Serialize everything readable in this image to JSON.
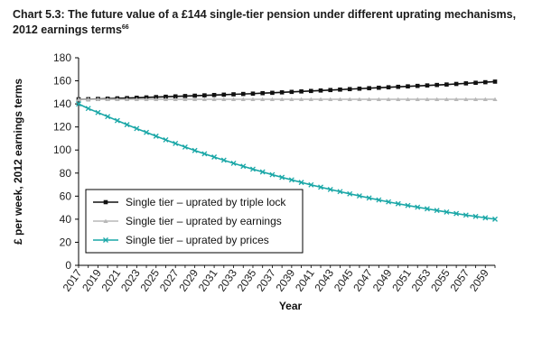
{
  "title": {
    "text": "Chart 5.3: The future value of a £144 single-tier pension under different uprating mechanisms, 2012 earnings terms",
    "footnote": "66"
  },
  "chart_data": {
    "type": "line",
    "xlabel": "Year",
    "ylabel": "£ per week, 2012 earnings terms",
    "xlim": [
      2017,
      2060
    ],
    "ylim": [
      0,
      180
    ],
    "yticks": [
      0,
      20,
      40,
      60,
      80,
      100,
      120,
      140,
      160,
      180
    ],
    "xticks": [
      2017,
      2019,
      2021,
      2023,
      2025,
      2027,
      2029,
      2031,
      2033,
      2035,
      2037,
      2039,
      2041,
      2043,
      2045,
      2047,
      2049,
      2051,
      2053,
      2055,
      2057,
      2059
    ],
    "grid": false,
    "legend_position": "lower-left",
    "x": [
      2017,
      2018,
      2019,
      2020,
      2021,
      2022,
      2023,
      2024,
      2025,
      2026,
      2027,
      2028,
      2029,
      2030,
      2031,
      2032,
      2033,
      2034,
      2035,
      2036,
      2037,
      2038,
      2039,
      2040,
      2041,
      2042,
      2043,
      2044,
      2045,
      2046,
      2047,
      2048,
      2049,
      2050,
      2051,
      2052,
      2053,
      2054,
      2055,
      2056,
      2057,
      2058,
      2059,
      2060
    ],
    "series": [
      {
        "name": "Single tier – uprated by triple lock",
        "color": "#111111",
        "marker": "square",
        "values": [
          144.0,
          144.1,
          144.3,
          144.5,
          144.8,
          145.0,
          145.3,
          145.6,
          145.9,
          146.2,
          146.5,
          146.8,
          147.1,
          147.4,
          147.7,
          148.0,
          148.3,
          148.6,
          148.9,
          149.3,
          149.6,
          150.0,
          150.4,
          150.8,
          151.2,
          151.6,
          152.0,
          152.4,
          152.8,
          153.2,
          153.6,
          154.0,
          154.4,
          154.8,
          155.2,
          155.6,
          156.0,
          156.4,
          156.8,
          157.3,
          157.8,
          158.3,
          158.8,
          159.3
        ]
      },
      {
        "name": "Single tier – uprated by earnings",
        "color": "#b8b8b8",
        "marker": "triangle",
        "values": [
          144,
          144,
          144,
          144,
          144,
          144,
          144,
          144,
          144,
          144,
          144,
          144,
          144,
          144,
          144,
          144,
          144,
          144,
          144,
          144,
          144,
          144,
          144,
          144,
          144,
          144,
          144,
          144,
          144,
          144,
          144,
          144,
          144,
          144,
          144,
          144,
          144,
          144,
          144,
          144,
          144,
          144,
          144,
          144
        ]
      },
      {
        "name": "Single tier – uprated by prices",
        "color": "#1aa7a7",
        "marker": "x",
        "values": [
          140.0,
          136.0,
          132.5,
          129.0,
          125.5,
          122.0,
          118.6,
          115.3,
          112.0,
          108.8,
          105.7,
          102.6,
          99.6,
          96.7,
          93.9,
          91.2,
          88.5,
          85.9,
          83.4,
          81.0,
          78.6,
          76.3,
          74.1,
          71.9,
          69.8,
          67.8,
          65.8,
          63.9,
          62.0,
          60.2,
          58.4,
          56.7,
          55.0,
          53.4,
          51.9,
          50.4,
          49.0,
          47.6,
          46.2,
          44.9,
          43.6,
          42.4,
          41.2,
          40.0
        ]
      }
    ]
  }
}
